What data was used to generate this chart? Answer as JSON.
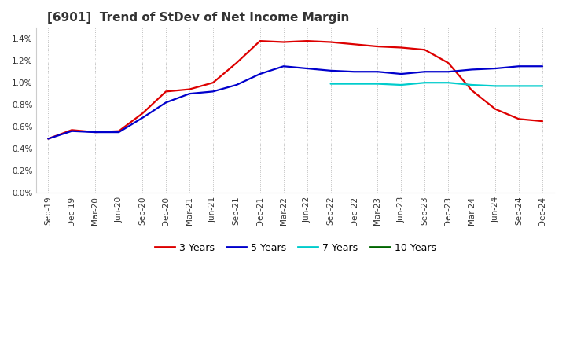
{
  "title": "[6901]  Trend of StDev of Net Income Margin",
  "background_color": "#ffffff",
  "plot_bg_color": "#ffffff",
  "grid_color": "#aaaaaa",
  "ylim": [
    0.0,
    0.015
  ],
  "yticks": [
    0.0,
    0.002,
    0.004,
    0.006,
    0.008,
    0.01,
    0.012,
    0.014
  ],
  "x_labels": [
    "Sep-19",
    "Dec-19",
    "Mar-20",
    "Jun-20",
    "Sep-20",
    "Dec-20",
    "Mar-21",
    "Jun-21",
    "Sep-21",
    "Dec-21",
    "Mar-22",
    "Jun-22",
    "Sep-22",
    "Dec-22",
    "Mar-23",
    "Jun-23",
    "Sep-23",
    "Dec-23",
    "Mar-24",
    "Jun-24",
    "Sep-24",
    "Dec-24"
  ],
  "series": {
    "3 Years": {
      "color": "#dd0000",
      "values": [
        0.0049,
        0.0057,
        0.0055,
        0.0056,
        0.0072,
        0.0092,
        0.0094,
        0.01,
        0.0118,
        0.0138,
        0.0137,
        0.0138,
        0.0137,
        0.0135,
        0.0133,
        0.0132,
        0.013,
        0.0118,
        0.0093,
        0.0076,
        0.0067,
        0.0065
      ]
    },
    "5 Years": {
      "color": "#0000cc",
      "values": [
        0.0049,
        0.0056,
        0.0055,
        0.0055,
        0.0068,
        0.0082,
        0.009,
        0.0092,
        0.0098,
        0.0108,
        0.0115,
        0.0113,
        0.0111,
        0.011,
        0.011,
        0.0108,
        0.011,
        0.011,
        0.0112,
        0.0113,
        0.0115,
        0.0115
      ]
    },
    "7 Years": {
      "color": "#00cccc",
      "values": [
        null,
        null,
        null,
        null,
        null,
        null,
        null,
        null,
        null,
        null,
        null,
        null,
        0.0099,
        0.0099,
        0.0099,
        0.0098,
        0.01,
        0.01,
        0.0098,
        0.0097,
        0.0097,
        0.0097
      ]
    },
    "10 Years": {
      "color": "#006600",
      "values": [
        null,
        null,
        null,
        null,
        null,
        null,
        null,
        null,
        null,
        null,
        null,
        null,
        null,
        null,
        null,
        null,
        null,
        null,
        null,
        null,
        null,
        null
      ]
    }
  },
  "legend_labels": [
    "3 Years",
    "5 Years",
    "7 Years",
    "10 Years"
  ],
  "legend_colors": [
    "#dd0000",
    "#0000cc",
    "#00cccc",
    "#006600"
  ]
}
